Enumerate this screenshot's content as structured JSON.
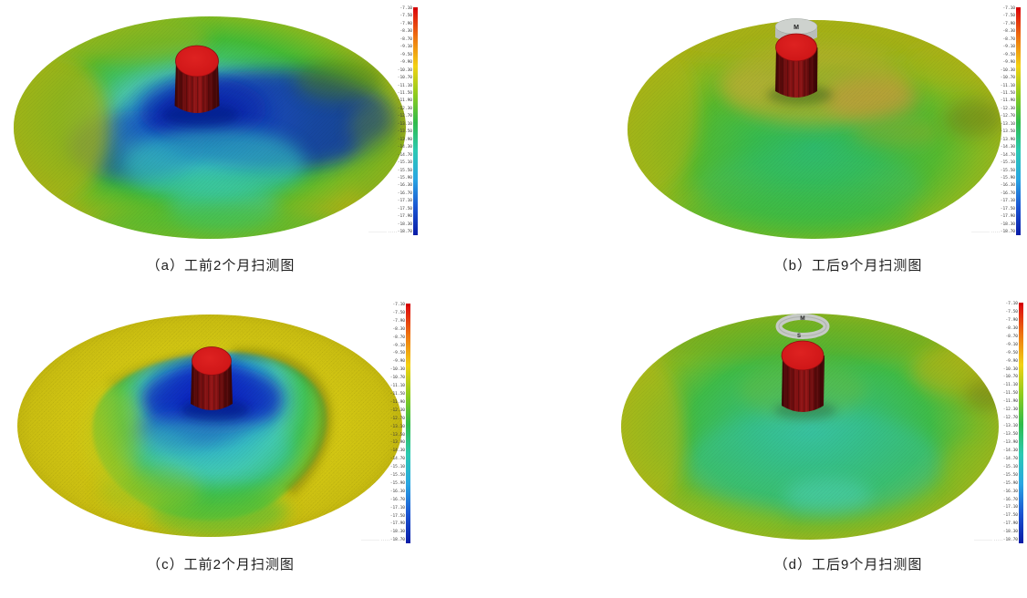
{
  "page": {
    "background": "#ffffff"
  },
  "panels": [
    {
      "label": "a",
      "caption": "（a）工前2个月扫测图"
    },
    {
      "label": "b",
      "caption": "（b）工后9个月扫测图",
      "cap_label": "M"
    },
    {
      "label": "c",
      "caption": "（c）工前2个月扫测图"
    },
    {
      "label": "d",
      "caption": "（d）工后9个月扫测图",
      "ring_top_label": "M",
      "ring_front_label": "S"
    }
  ],
  "colorbar": {
    "gradient": [
      "#dd0d0d",
      "#ee7611",
      "#f2d214",
      "#8fcb1e",
      "#30bb4b",
      "#2cc9b2",
      "#2aa6e2",
      "#1b55d2",
      "#0a1ca6"
    ],
    "ticks": [
      "-7.10",
      "-7.50",
      "-7.90",
      "-8.30",
      "-8.70",
      "-9.10",
      "-9.50",
      "-9.90",
      "-10.30",
      "-10.70",
      "-11.10",
      "-11.50",
      "-11.90",
      "-12.30",
      "-12.70",
      "-13.10",
      "-13.50",
      "-13.90",
      "-14.30",
      "-14.70",
      "-15.10",
      "-15.50",
      "-15.90",
      "-16.30",
      "-16.70",
      "-17.10",
      "-17.50",
      "-17.90",
      "-18.30",
      "-18.70"
    ],
    "footnote": "·········· ·····"
  }
}
